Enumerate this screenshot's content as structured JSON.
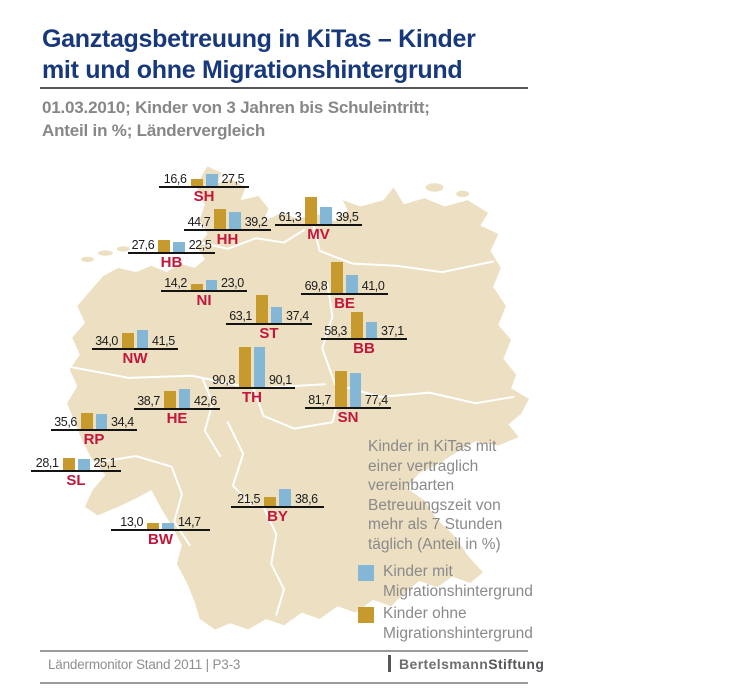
{
  "header": {
    "title_line1": "Ganztagsbetreuung in KiTas – Kinder",
    "title_line2": "mit und ohne Migrationshintergrund",
    "subtitle_line1": "01.03.2010; Kinder von 3 Jahren bis Schuleintritt;",
    "subtitle_line2": "Anteil in %; Ländervergleich"
  },
  "chart_data": {
    "type": "bar",
    "subtype": "grouped bars placed on a Germany federal-state map",
    "title": "Ganztagsbetreuung in KiTas – Kinder mit und ohne Migrationshintergrund",
    "date": "01.03.2010",
    "population": "Kinder von 3 Jahren bis Schuleintritt",
    "unit": "Anteil in %",
    "left_bar_series": "ohne",
    "right_bar_series": "mit",
    "series": [
      {
        "id": "mit",
        "name": "Kinder mit Migrationshintergrund",
        "color": "#84b7d5"
      },
      {
        "id": "ohne",
        "name": "Kinder ohne Migrationshintergrund",
        "color": "#c69a2d"
      }
    ],
    "states": [
      {
        "abbr": "SH",
        "ohne": 16.6,
        "mit": 27.5
      },
      {
        "abbr": "HH",
        "ohne": 44.7,
        "mit": 39.2
      },
      {
        "abbr": "MV",
        "ohne": 61.3,
        "mit": 39.5
      },
      {
        "abbr": "HB",
        "ohne": 27.6,
        "mit": 22.5
      },
      {
        "abbr": "NI",
        "ohne": 14.2,
        "mit": 23.0
      },
      {
        "abbr": "BE",
        "ohne": 69.8,
        "mit": 41.0
      },
      {
        "abbr": "ST",
        "ohne": 63.1,
        "mit": 37.4
      },
      {
        "abbr": "BB",
        "ohne": 58.3,
        "mit": 37.1
      },
      {
        "abbr": "NW",
        "ohne": 34.0,
        "mit": 41.5
      },
      {
        "abbr": "TH",
        "ohne": 90.8,
        "mit": 90.1
      },
      {
        "abbr": "SN",
        "ohne": 81.7,
        "mit": 77.4
      },
      {
        "abbr": "HE",
        "ohne": 38.7,
        "mit": 42.6
      },
      {
        "abbr": "RP",
        "ohne": 35.6,
        "mit": 34.4
      },
      {
        "abbr": "SL",
        "ohne": 28.1,
        "mit": 25.1
      },
      {
        "abbr": "BY",
        "ohne": 21.5,
        "mit": 38.6
      },
      {
        "abbr": "BW",
        "ohne": 13.0,
        "mit": 14.7
      }
    ]
  },
  "annotation": {
    "lines": [
      "Kinder in KiTas mit",
      "einer vertraglich",
      "vereinbarten",
      "Betreuungszeit von",
      "mehr als 7 Stunden",
      "täglich (Anteil in %)"
    ]
  },
  "legend": {
    "items": [
      {
        "key": "mit",
        "line1": "Kinder mit",
        "line2": "Migrationshintergrund"
      },
      {
        "key": "ohne",
        "line1": "Kinder ohne",
        "line2": "Migrationshintergrund"
      }
    ]
  },
  "footer": {
    "source": "Ländermonitor Stand 2011 | P3-3",
    "brand_normal": "Bertelsmann",
    "brand_bold": "Stiftung"
  },
  "colors": {
    "title_navy": "#17387b",
    "state_label_red": "#c2163c",
    "bar_ohne_gold": "#c69a2d",
    "bar_mit_blue": "#84b7d5",
    "map_beige": "#ecdfc2"
  }
}
